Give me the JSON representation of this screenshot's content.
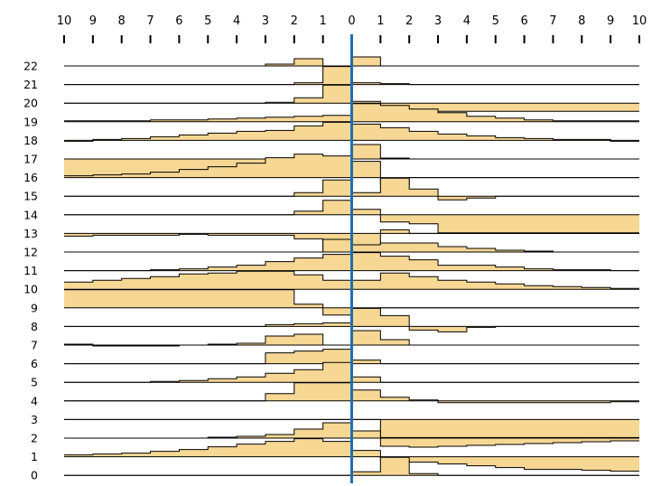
{
  "chart_data": {
    "type": "area",
    "title": "",
    "xlabel": "",
    "ylabel": "",
    "x_tick_labels": [
      "10",
      "9",
      "8",
      "7",
      "6",
      "5",
      "4",
      "3",
      "2",
      "1",
      "0",
      "1",
      "2",
      "3",
      "4",
      "5",
      "6",
      "7",
      "8",
      "9",
      "10"
    ],
    "x_range": [
      -10,
      10
    ],
    "center_line_x": 0,
    "grid": false,
    "legend": "none",
    "colors": {
      "fill": "#f7d794",
      "line": "#000000",
      "center": "#1f6fb2"
    },
    "rows": [
      {
        "label": "22",
        "values": [
          0,
          0,
          0,
          0,
          0,
          0,
          0,
          0.1,
          0.4,
          0,
          0.5,
          0,
          0,
          0,
          0,
          0,
          0,
          0,
          0,
          0
        ]
      },
      {
        "label": "21",
        "values": [
          0,
          0,
          0,
          0,
          0,
          0,
          0,
          0,
          0.1,
          1,
          0.1,
          0.05,
          0,
          0,
          0,
          0,
          0,
          0,
          0,
          0
        ]
      },
      {
        "label": "20",
        "values": [
          0,
          0,
          0,
          0,
          0,
          0,
          0,
          0.05,
          0.3,
          1,
          0.1,
          -0.4,
          -0.45,
          -0.45,
          -0.45,
          -0.45,
          -0.45,
          -0.45,
          -0.45,
          -0.45
        ]
      },
      {
        "label": "19",
        "values": [
          0.05,
          0.05,
          0.05,
          0.1,
          0.1,
          0.15,
          0.2,
          0.25,
          0.3,
          0.35,
          1,
          0.9,
          0.7,
          0.5,
          0.3,
          0.2,
          0.1,
          0.05,
          0.05,
          0.05
        ]
      },
      {
        "label": "18",
        "values": [
          -0.05,
          0.05,
          0.1,
          0.2,
          0.3,
          0.4,
          0.5,
          0.55,
          0.8,
          1,
          0.9,
          0.7,
          0.5,
          0.35,
          0.25,
          0.15,
          0.1,
          0.05,
          0.05,
          -0.05
        ]
      },
      {
        "label": "17",
        "values": [
          -1,
          -1,
          -1,
          -1,
          -1,
          -1,
          -1,
          -0.5,
          -0.2,
          0,
          0.8,
          0.05,
          0,
          0,
          0,
          0,
          0,
          0,
          0,
          0
        ]
      },
      {
        "label": "16",
        "values": [
          0.1,
          0.15,
          0.2,
          0.3,
          0.45,
          0.6,
          0.8,
          1.1,
          1.3,
          1.2,
          0.9,
          -0.4,
          0,
          0,
          0,
          0,
          0,
          0,
          0,
          0
        ]
      },
      {
        "label": "15",
        "values": [
          0,
          0,
          0,
          0,
          0,
          0,
          0,
          0,
          0.2,
          0.9,
          0.2,
          1,
          0.4,
          -0.2,
          -0.1,
          0,
          0,
          0,
          0,
          0
        ]
      },
      {
        "label": "14",
        "values": [
          0,
          0,
          0,
          0,
          0,
          0,
          0,
          0,
          0.2,
          0.8,
          0.3,
          -0.4,
          -0.5,
          -1,
          -1,
          -1,
          -1,
          -1,
          -1,
          -1
        ]
      },
      {
        "label": "13",
        "values": [
          -0.15,
          -0.1,
          -0.1,
          -0.1,
          -0.05,
          -0.1,
          -0.1,
          -0.1,
          -0.3,
          -1,
          -1,
          0.2,
          0,
          0,
          0,
          0,
          0,
          0,
          0,
          0
        ]
      },
      {
        "label": "12",
        "values": [
          0,
          0,
          0,
          0,
          0,
          0,
          0,
          0,
          0,
          0.7,
          0.4,
          0.5,
          0.5,
          0.3,
          0.2,
          0.1,
          0.05,
          0,
          0,
          0
        ]
      },
      {
        "label": "11",
        "values": [
          0,
          0,
          0,
          0.05,
          0.1,
          0.2,
          0.3,
          0.5,
          0.7,
          0.9,
          1,
          0.8,
          0.6,
          0.3,
          0.3,
          0.2,
          0.1,
          0.05,
          0.05,
          0
        ]
      },
      {
        "label": "10",
        "values": [
          0.4,
          0.5,
          0.6,
          0.7,
          0.85,
          0.9,
          1,
          1,
          0.8,
          0.5,
          0.5,
          0.9,
          0.7,
          0.5,
          0.4,
          0.3,
          0.2,
          0.15,
          0.1,
          0.05
        ]
      },
      {
        "label": "9",
        "values": [
          1,
          1,
          1,
          1,
          1,
          1,
          1,
          1,
          0.2,
          -0.4,
          -0.1,
          0,
          0,
          0,
          0,
          0,
          0,
          0,
          0,
          0
        ]
      },
      {
        "label": "8",
        "values": [
          0,
          0,
          0,
          0,
          0,
          0,
          0,
          0.1,
          0.15,
          0.2,
          1,
          0.6,
          -0.2,
          -0.3,
          -0.05,
          0,
          0,
          0,
          0,
          0
        ]
      },
      {
        "label": "7",
        "values": [
          0.05,
          -0.05,
          -0.05,
          -0.05,
          0,
          0.05,
          0.1,
          0.5,
          0.6,
          0,
          0.8,
          0.3,
          0,
          0,
          0,
          0,
          0,
          0,
          0,
          0
        ]
      },
      {
        "label": "6",
        "values": [
          0,
          0,
          0,
          0,
          0,
          0,
          0,
          0.6,
          0.7,
          0.8,
          0.2,
          0,
          0,
          0,
          0,
          0,
          0,
          0,
          0,
          0
        ]
      },
      {
        "label": "5",
        "values": [
          0,
          0,
          0,
          0.05,
          0.1,
          0.2,
          0.3,
          0.5,
          0.7,
          1.1,
          0.3,
          0,
          0,
          0,
          0,
          0,
          0,
          0,
          0,
          0
        ]
      },
      {
        "label": "4",
        "values": [
          0,
          0,
          0,
          0,
          0,
          0,
          0,
          0.4,
          1,
          1,
          0.6,
          0.2,
          0.05,
          -0.1,
          -0.1,
          -0.1,
          -0.1,
          -0.1,
          -0.1,
          -0.05
        ]
      },
      {
        "label": "3",
        "values": [
          0,
          0,
          0,
          0,
          0,
          0,
          0,
          0,
          0,
          0,
          0,
          -1,
          -1,
          -1,
          -1,
          -1,
          -1,
          -1,
          -1,
          -1
        ]
      },
      {
        "label": "2",
        "values": [
          0,
          0,
          0,
          0,
          0,
          0.05,
          0.1,
          0.2,
          0.5,
          0.85,
          0.4,
          -0.45,
          -0.5,
          -0.45,
          -0.4,
          -0.35,
          -0.3,
          -0.25,
          -0.2,
          -0.15
        ]
      },
      {
        "label": "1",
        "values": [
          0.1,
          0.15,
          0.2,
          0.3,
          0.4,
          0.55,
          0.7,
          0.85,
          1,
          0.85,
          0.35,
          -0.2,
          -0.3,
          -0.4,
          -0.5,
          -0.6,
          -0.7,
          -0.7,
          -0.75,
          -0.8
        ]
      },
      {
        "label": "0",
        "values": [
          0,
          0,
          0,
          0,
          0,
          0,
          0,
          0,
          0,
          0,
          0.2,
          1,
          0.1,
          0,
          0,
          0,
          0,
          0,
          0,
          0
        ]
      }
    ]
  }
}
